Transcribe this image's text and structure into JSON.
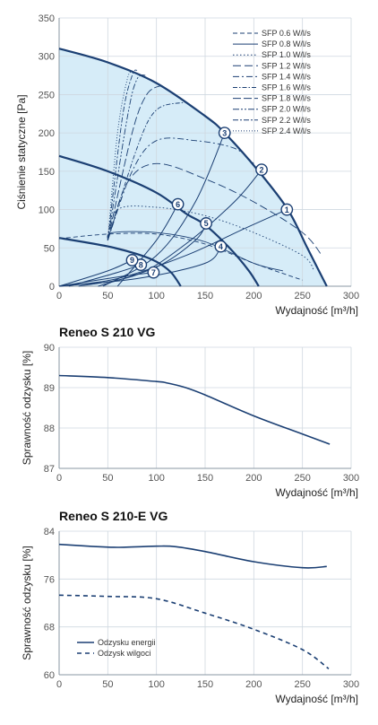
{
  "chart_data": [
    {
      "type": "line",
      "xlabel": "Wydajność [m³/h]",
      "ylabel": "Ciśnienie statyczne [Pa]",
      "xlim": [
        0,
        300
      ],
      "ylim": [
        0,
        350
      ],
      "xticks": [
        0,
        50,
        100,
        150,
        200,
        250,
        300
      ],
      "yticks": [
        0,
        50,
        100,
        150,
        200,
        250,
        300,
        350
      ],
      "grid": true,
      "legend_position": "top-right",
      "colors": {
        "curve": "#1b3f73",
        "fill": "#d6ecf8",
        "grid": "#cfd8e0"
      },
      "legend": [
        "SFP 0.6 W/l/s",
        "SFP 0.8 W/l/s",
        "SFP 1.0 W/l/s",
        "SFP 1.2 W/l/s",
        "SFP 1.4 W/l/s",
        "SFP 1.6 W/l/s",
        "SFP 1.8 W/l/s",
        "SFP 2.0 W/l/s",
        "SFP 2.2 W/l/s",
        "SFP 2.4 W/l/s"
      ],
      "fan_curves": [
        {
          "points": [
            [
              0,
              310
            ],
            [
              50,
              292
            ],
            [
              100,
              265
            ],
            [
              150,
              222
            ],
            [
              170,
              200
            ],
            [
              205,
              150
            ],
            [
              235,
              100
            ],
            [
              255,
              50
            ],
            [
              275,
              0
            ]
          ]
        },
        {
          "points": [
            [
              0,
              170
            ],
            [
              50,
              150
            ],
            [
              100,
              122
            ],
            [
              130,
              95
            ],
            [
              150,
              80
            ],
            [
              175,
              50
            ],
            [
              195,
              20
            ],
            [
              205,
              0
            ]
          ]
        },
        {
          "points": [
            [
              0,
              63
            ],
            [
              50,
              52
            ],
            [
              80,
              42
            ],
            [
              100,
              32
            ],
            [
              115,
              18
            ],
            [
              125,
              0
            ]
          ]
        }
      ],
      "system_curves": [
        {
          "label": "1",
          "points": [
            [
              0,
              0
            ],
            [
              60,
              10
            ],
            [
              130,
              40
            ],
            [
              190,
              75
            ],
            [
              234,
              100
            ]
          ]
        },
        {
          "label": "2",
          "points": [
            [
              20,
              0
            ],
            [
              80,
              15
            ],
            [
              130,
              55
            ],
            [
              180,
              110
            ],
            [
              208,
              152
            ]
          ]
        },
        {
          "label": "3",
          "points": [
            [
              45,
              0
            ],
            [
              100,
              40
            ],
            [
              140,
              110
            ],
            [
              170,
              200
            ]
          ]
        },
        {
          "label": "4",
          "points": [
            [
              0,
              0
            ],
            [
              80,
              10
            ],
            [
              150,
              30
            ],
            [
              166,
              52
            ]
          ]
        },
        {
          "label": "5",
          "points": [
            [
              40,
              0
            ],
            [
              100,
              25
            ],
            [
              140,
              60
            ],
            [
              151,
              82
            ]
          ]
        },
        {
          "label": "6",
          "points": [
            [
              60,
              0
            ],
            [
              100,
              60
            ],
            [
              122,
              107
            ]
          ]
        },
        {
          "label": "7",
          "points": [
            [
              0,
              0
            ],
            [
              60,
              12
            ],
            [
              97,
              18
            ]
          ]
        },
        {
          "label": "8",
          "points": [
            [
              10,
              0
            ],
            [
              60,
              18
            ],
            [
              84,
              28
            ]
          ]
        },
        {
          "label": "9",
          "points": [
            [
              0,
              0
            ],
            [
              50,
              20
            ],
            [
              75,
              34
            ]
          ]
        }
      ],
      "sfp_curves": [
        {
          "name": "SFP 0.6 W/l/s",
          "style": "dash",
          "points": [
            [
              0,
              62
            ],
            [
              50,
              68
            ],
            [
              100,
              68
            ],
            [
              150,
              55
            ],
            [
              200,
              30
            ],
            [
              250,
              8
            ]
          ]
        },
        {
          "name": "SFP 0.8 W/l/s",
          "style": "solid",
          "points": [
            [
              50,
              60
            ],
            [
              55,
              70
            ],
            [
              100,
              70
            ],
            [
              150,
              58
            ],
            [
              200,
              30
            ],
            [
              230,
              20
            ]
          ]
        },
        {
          "name": "SFP 1.0 W/l/s",
          "style": "dot",
          "points": [
            [
              50,
              60
            ],
            [
              60,
              100
            ],
            [
              100,
              103
            ],
            [
              150,
              92
            ],
            [
              200,
              70
            ],
            [
              250,
              40
            ],
            [
              262,
              20
            ]
          ]
        },
        {
          "name": "SFP 1.2 W/l/s",
          "style": "longdash",
          "points": [
            [
              50,
              60
            ],
            [
              70,
              135
            ],
            [
              100,
              160
            ],
            [
              150,
              140
            ],
            [
              200,
              110
            ],
            [
              250,
              70
            ],
            [
              270,
              40
            ]
          ]
        },
        {
          "name": "SFP 1.4 W/l/s",
          "style": "dashdot",
          "points": [
            [
              50,
              60
            ],
            [
              75,
              150
            ],
            [
              100,
              190
            ],
            [
              140,
              190
            ],
            [
              180,
              180
            ],
            [
              200,
              160
            ]
          ]
        },
        {
          "name": "SFP 1.6 W/l/s",
          "style": "dashdot2",
          "points": [
            [
              50,
              60
            ],
            [
              80,
              180
            ],
            [
              100,
              230
            ],
            [
              130,
              240
            ]
          ]
        },
        {
          "name": "SFP 1.8 W/l/s",
          "style": "longdash2",
          "points": [
            [
              50,
              60
            ],
            [
              75,
              200
            ],
            [
              90,
              250
            ],
            [
              105,
              262
            ]
          ]
        },
        {
          "name": "SFP 2.0 W/l/s",
          "style": "dashdot3",
          "points": [
            [
              50,
              60
            ],
            [
              70,
              220
            ],
            [
              80,
              270
            ],
            [
              90,
              275
            ]
          ]
        },
        {
          "name": "SFP 2.2 W/l/s",
          "style": "dash2",
          "points": [
            [
              50,
              60
            ],
            [
              65,
              220
            ],
            [
              75,
              275
            ],
            [
              80,
              282
            ]
          ]
        },
        {
          "name": "SFP 2.4 W/l/s",
          "style": "dot2",
          "points": [
            [
              50,
              60
            ],
            [
              60,
              200
            ],
            [
              70,
              270
            ],
            [
              75,
              280
            ]
          ]
        }
      ]
    },
    {
      "type": "line",
      "title": "Reneo S 210 VG",
      "xlabel": "Wydajność [m³/h]",
      "ylabel": "Sprawność odzysku [%]",
      "xlim": [
        0,
        300
      ],
      "ylim": [
        87,
        90
      ],
      "xticks": [
        0,
        50,
        100,
        150,
        200,
        250,
        300
      ],
      "yticks": [
        87,
        88,
        89,
        90
      ],
      "grid": true,
      "series": [
        {
          "points": [
            [
              0,
              89.3
            ],
            [
              50,
              89.25
            ],
            [
              100,
              89.15
            ],
            [
              110,
              89.12
            ],
            [
              130,
              89.0
            ],
            [
              150,
              88.82
            ],
            [
              200,
              88.3
            ],
            [
              250,
              87.85
            ],
            [
              278,
              87.6
            ]
          ]
        }
      ]
    },
    {
      "type": "line",
      "title": "Reneo S 210-E VG",
      "xlabel": "Wydajność [m³/h]",
      "ylabel": "Sprawność odzysku [%]",
      "xlim": [
        0,
        300
      ],
      "ylim": [
        60,
        84
      ],
      "xticks": [
        0,
        50,
        100,
        150,
        200,
        250,
        300
      ],
      "yticks": [
        60,
        68,
        76,
        84
      ],
      "grid": true,
      "legend_position": "bottom-left",
      "series": [
        {
          "name": "Odzysku energii",
          "style": "solid",
          "points": [
            [
              0,
              81.8
            ],
            [
              30,
              81.5
            ],
            [
              60,
              81.3
            ],
            [
              100,
              81.5
            ],
            [
              120,
              81.4
            ],
            [
              150,
              80.6
            ],
            [
              200,
              78.9
            ],
            [
              250,
              77.9
            ],
            [
              275,
              78.1
            ]
          ]
        },
        {
          "name": "Odzysk wilgoci",
          "style": "dashed",
          "points": [
            [
              0,
              73.3
            ],
            [
              50,
              73.1
            ],
            [
              100,
              72.7
            ],
            [
              150,
              70.3
            ],
            [
              200,
              67.6
            ],
            [
              250,
              64.2
            ],
            [
              277,
              61.0
            ]
          ]
        }
      ]
    }
  ]
}
